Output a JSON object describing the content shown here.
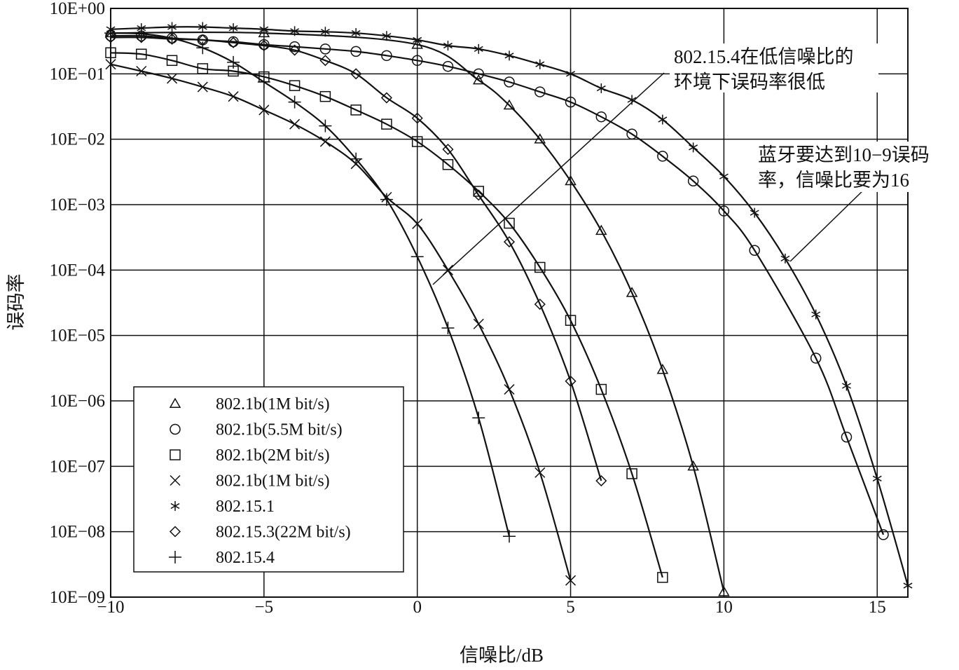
{
  "chart_data": {
    "type": "line",
    "xlabel": "信噪比/dB",
    "ylabel": "误码率",
    "xlim": [
      -10,
      16
    ],
    "ylim_log10": [
      -9,
      0
    ],
    "yscale": "log",
    "grid": true,
    "x_ticks": [
      -10,
      -5,
      0,
      5,
      10,
      15
    ],
    "x_tick_labels": [
      "−10",
      "−5",
      "0",
      "5",
      "10",
      "15"
    ],
    "y_ticks_log10": [
      0,
      -1,
      -2,
      -3,
      -4,
      -5,
      -6,
      -7,
      -8,
      -9
    ],
    "y_tick_labels": [
      "10E+00",
      "10E−01",
      "10E−02",
      "10E−03",
      "10E−04",
      "10E−05",
      "10E−06",
      "10E−07",
      "10E−08",
      "10E−09"
    ],
    "legend_position": "bottom-left",
    "series": [
      {
        "name": "802.1b(1M bit/s)",
        "marker": "triangle",
        "points": [
          [
            -10,
            0.42
          ],
          [
            -5,
            0.42
          ],
          [
            0,
            0.28
          ],
          [
            2,
            0.08
          ],
          [
            3,
            0.033
          ],
          [
            4,
            0.01
          ],
          [
            5,
            0.0023
          ],
          [
            6,
            0.0004
          ],
          [
            7,
            4.5e-05
          ],
          [
            8,
            3e-06
          ],
          [
            9,
            1e-07
          ],
          [
            10,
            1.2e-09
          ]
        ]
      },
      {
        "name": "802.1b(5.5M bit/s)",
        "marker": "circle",
        "points": [
          [
            -10,
            0.38
          ],
          [
            -9,
            0.38
          ],
          [
            -8,
            0.35
          ],
          [
            -7,
            0.33
          ],
          [
            -6,
            0.31
          ],
          [
            -5,
            0.28
          ],
          [
            -4,
            0.26
          ],
          [
            -3,
            0.24
          ],
          [
            -2,
            0.22
          ],
          [
            -1,
            0.19
          ],
          [
            0,
            0.16
          ],
          [
            1,
            0.13
          ],
          [
            2,
            0.1
          ],
          [
            3,
            0.075
          ],
          [
            4,
            0.053
          ],
          [
            5,
            0.037
          ],
          [
            6,
            0.022
          ],
          [
            7,
            0.012
          ],
          [
            8,
            0.0055
          ],
          [
            9,
            0.0023
          ],
          [
            10,
            0.0008
          ],
          [
            11,
            0.0002
          ],
          [
            13,
            4.5e-06
          ],
          [
            14,
            2.8e-07
          ],
          [
            15.2,
            9e-09
          ]
        ]
      },
      {
        "name": "802.1b(2M bit/s)",
        "marker": "square",
        "points": [
          [
            -10,
            0.21
          ],
          [
            -9,
            0.2
          ],
          [
            -8,
            0.16
          ],
          [
            -7,
            0.12
          ],
          [
            -6,
            0.11
          ],
          [
            -5,
            0.09
          ],
          [
            -4,
            0.066
          ],
          [
            -3,
            0.045
          ],
          [
            -2,
            0.028
          ],
          [
            -1,
            0.017
          ],
          [
            0,
            0.0092
          ],
          [
            1,
            0.0041
          ],
          [
            2,
            0.0016
          ],
          [
            3,
            0.00052
          ],
          [
            4,
            0.00011
          ],
          [
            5,
            1.7e-05
          ],
          [
            6,
            1.5e-06
          ],
          [
            7,
            7.7e-08
          ],
          [
            8,
            2e-09
          ]
        ]
      },
      {
        "name": "802.1b(1M bit/s)",
        "marker": "x",
        "points": [
          [
            -10,
            0.14
          ],
          [
            -9,
            0.11
          ],
          [
            -8,
            0.085
          ],
          [
            -7,
            0.063
          ],
          [
            -6,
            0.045
          ],
          [
            -5,
            0.028
          ],
          [
            -4,
            0.017
          ],
          [
            -3,
            0.0092
          ],
          [
            -2,
            0.0042
          ],
          [
            -1,
            0.0013
          ],
          [
            0,
            0.00051
          ],
          [
            1,
            0.0001
          ],
          [
            2,
            1.5e-05
          ],
          [
            3,
            1.5e-06
          ],
          [
            4,
            8e-08
          ],
          [
            5,
            1.8e-09
          ]
        ]
      },
      {
        "name": "802.15.1",
        "marker": "asterisk",
        "points": [
          [
            -10,
            0.48
          ],
          [
            -9,
            0.5
          ],
          [
            -8,
            0.52
          ],
          [
            -7,
            0.52
          ],
          [
            -6,
            0.5
          ],
          [
            -5,
            0.48
          ],
          [
            -4,
            0.45
          ],
          [
            -3,
            0.44
          ],
          [
            -2,
            0.42
          ],
          [
            -1,
            0.38
          ],
          [
            0,
            0.33
          ],
          [
            1,
            0.27
          ],
          [
            2,
            0.24
          ],
          [
            3,
            0.19
          ],
          [
            4,
            0.14
          ],
          [
            5,
            0.1
          ],
          [
            6,
            0.06
          ],
          [
            7,
            0.04
          ],
          [
            8,
            0.02
          ],
          [
            9,
            0.0075
          ],
          [
            10,
            0.0027
          ],
          [
            11,
            0.00075
          ],
          [
            12,
            0.00015
          ],
          [
            13,
            2.1e-05
          ],
          [
            14,
            1.7e-06
          ],
          [
            15,
            6.5e-08
          ],
          [
            16,
            1.5e-09
          ]
        ]
      },
      {
        "name": "802.15.3(22M bit/s)",
        "marker": "diamond",
        "points": [
          [
            -10,
            0.36
          ],
          [
            -9,
            0.36
          ],
          [
            -8,
            0.34
          ],
          [
            -7,
            0.33
          ],
          [
            -6,
            0.3
          ],
          [
            -5,
            0.27
          ],
          [
            -4,
            0.23
          ],
          [
            -3,
            0.16
          ],
          [
            -2,
            0.1
          ],
          [
            -1,
            0.043
          ],
          [
            0,
            0.021
          ],
          [
            1,
            0.007
          ],
          [
            2,
            0.0014
          ],
          [
            3,
            0.00027
          ],
          [
            4,
            3e-05
          ],
          [
            5,
            2e-06
          ],
          [
            6,
            6e-08
          ]
        ]
      },
      {
        "name": "802.15.4",
        "marker": "plus",
        "points": [
          [
            -10,
            0.42
          ],
          [
            -9,
            0.41
          ],
          [
            -8,
            0.35
          ],
          [
            -7,
            0.25
          ],
          [
            -6,
            0.15
          ],
          [
            -5,
            0.075
          ],
          [
            -4,
            0.037
          ],
          [
            -3,
            0.016
          ],
          [
            -2,
            0.005
          ],
          [
            -1,
            0.0012
          ],
          [
            0,
            0.00016
          ],
          [
            1,
            1.3e-05
          ],
          [
            2,
            5.5e-07
          ],
          [
            3,
            8.5e-09
          ]
        ]
      }
    ],
    "annotations": [
      {
        "lines": [
          "802.15.4在低信噪比的",
          "环境下误码率很低"
        ]
      },
      {
        "lines": [
          "蓝牙要达到10−9误码",
          "率，信噪比要为16"
        ]
      }
    ]
  }
}
